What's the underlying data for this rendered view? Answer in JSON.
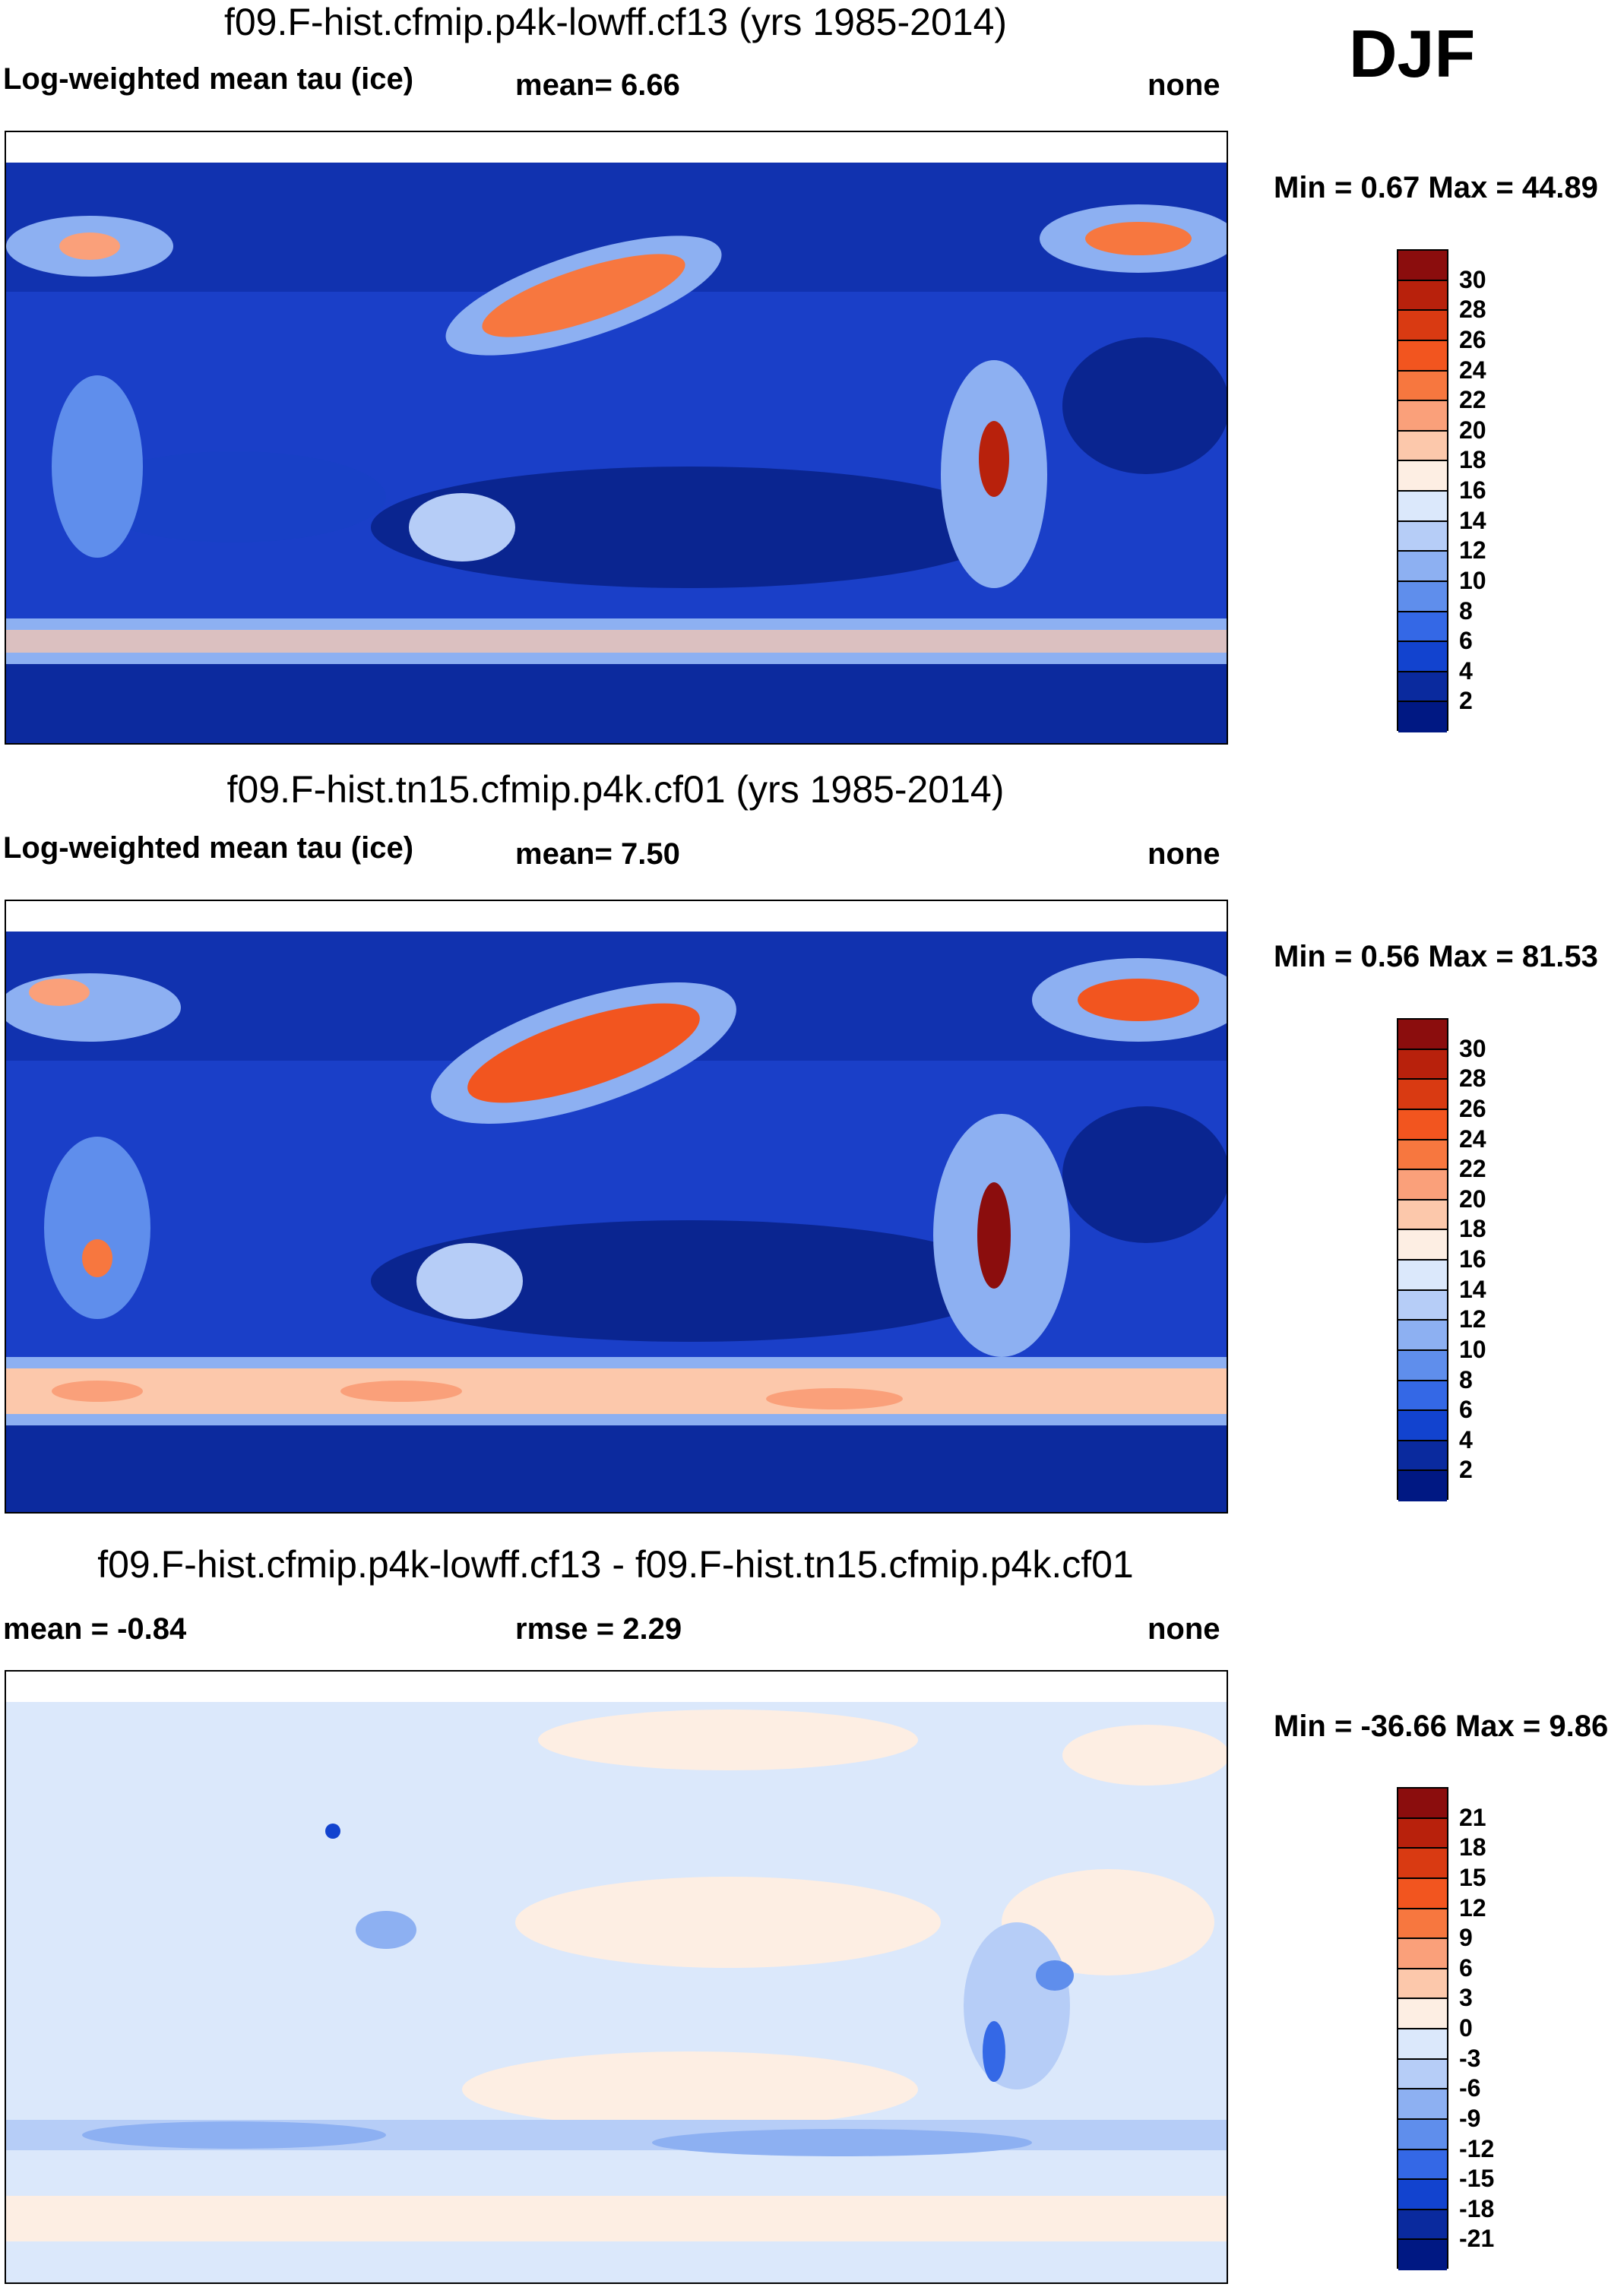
{
  "season": "DJF",
  "panels": [
    {
      "title": "f09.F-hist.cfmip.p4k-lowff.cf13 (yrs 1985-2014)",
      "left_label": "Log-weighted mean tau (ice)",
      "center_label": "mean=   6.66",
      "right_label": "none",
      "minmax": "Min =   0.67 Max =  44.89",
      "colorbar_ticks": [
        "30",
        "28",
        "26",
        "24",
        "22",
        "20",
        "18",
        "16",
        "14",
        "12",
        "10",
        "8",
        "6",
        "4",
        "2"
      ]
    },
    {
      "title": "f09.F-hist.tn15.cfmip.p4k.cf01 (yrs 1985-2014)",
      "left_label": "Log-weighted mean tau (ice)",
      "center_label": "mean=   7.50",
      "right_label": "none",
      "minmax": "Min =   0.56 Max =  81.53",
      "colorbar_ticks": [
        "30",
        "28",
        "26",
        "24",
        "22",
        "20",
        "18",
        "16",
        "14",
        "12",
        "10",
        "8",
        "6",
        "4",
        "2"
      ]
    },
    {
      "title": "f09.F-hist.cfmip.p4k-lowff.cf13 - f09.F-hist.tn15.cfmip.p4k.cf01",
      "left_label": "mean =  -0.84",
      "center_label": "rmse =    2.29",
      "right_label": "none",
      "minmax": "Min = -36.66 Max =   9.86",
      "colorbar_ticks": [
        "21",
        "18",
        "15",
        "12",
        "9",
        "6",
        "3",
        "0",
        "-3",
        "-6",
        "-9",
        "-12",
        "-15",
        "-18",
        "-21"
      ]
    }
  ],
  "colors": {
    "abs_scale": [
      "#8b0d0d",
      "#b8210c",
      "#d93a12",
      "#f2551f",
      "#f7773f",
      "#faa07a",
      "#fcc8ab",
      "#fdeee3",
      "#dbe8fb",
      "#b6cdf7",
      "#8db0f2",
      "#5f8eec",
      "#3468e6",
      "#1243cf",
      "#0a2a9e",
      "#001883"
    ],
    "diff_scale": [
      "#8b0d0d",
      "#b8210c",
      "#d93a12",
      "#f2551f",
      "#f7773f",
      "#faa07a",
      "#fcc8ab",
      "#fdeee3",
      "#dbe8fb",
      "#b6cdf7",
      "#8db0f2",
      "#5f8eec",
      "#3468e6",
      "#1243cf",
      "#0a2a9e",
      "#001883"
    ]
  }
}
